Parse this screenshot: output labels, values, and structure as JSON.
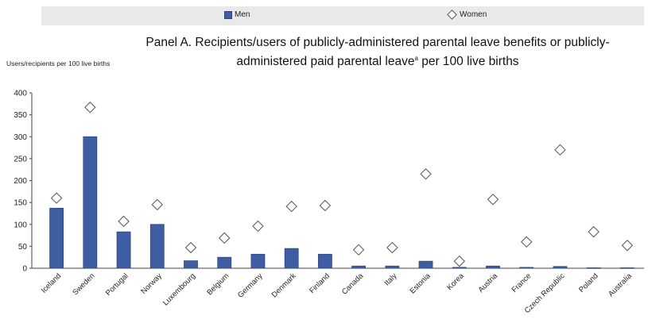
{
  "chart_data": {
    "type": "bar",
    "title": "Panel A. Recipients/users of publicly-administered parental leave benefits or publicly-administered paid parental leave",
    "title_superscript": "a",
    "title_suffix": "per 100 live births",
    "ylabel": "Users/recipients per 100 live births",
    "ylim": [
      0,
      400
    ],
    "yticks": [
      0,
      50,
      100,
      150,
      200,
      250,
      300,
      350,
      400
    ],
    "legend_position": "top",
    "categories": [
      "Iceland",
      "Sweden",
      "Portugal",
      "Norway",
      "Luxembourg",
      "Belgium",
      "Germany",
      "Denmark",
      "Finland",
      "Canada",
      "Italy",
      "Estonia",
      "Korea",
      "Austria",
      "France",
      "Czech Republic",
      "Poland",
      "Australia"
    ],
    "series": [
      {
        "name": "Men",
        "marker": "bar",
        "color": "#3e5da3",
        "values": [
          137,
          300,
          83,
          100,
          17,
          25,
          32,
          45,
          32,
          5,
          5,
          16,
          2,
          5,
          2,
          4,
          1,
          1
        ]
      },
      {
        "name": "Women",
        "marker": "diamond",
        "color": "#ffffff",
        "values": [
          160,
          367,
          107,
          145,
          47,
          69,
          96,
          141,
          143,
          42,
          47,
          215,
          16,
          157,
          60,
          270,
          83,
          52
        ]
      }
    ]
  }
}
